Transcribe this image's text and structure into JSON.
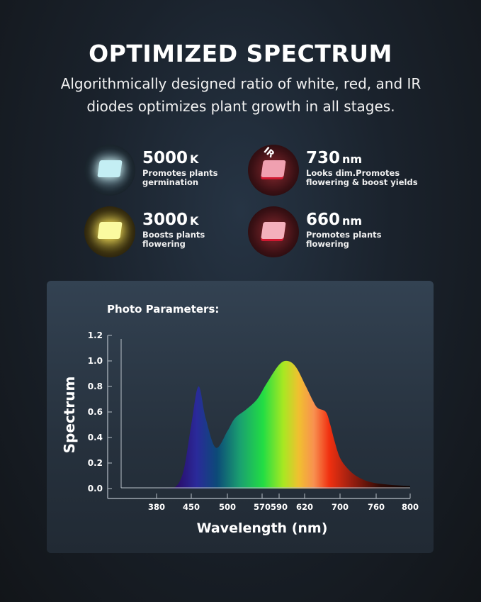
{
  "header": {
    "title": "OPTIMIZED SPECTRUM",
    "subtitle": "Algorithmically designed ratio of white, red, and IR diodes optimizes plant growth in all stages."
  },
  "features": [
    {
      "value": "5000",
      "unit": "K",
      "line1": "Promotes plants",
      "line2": "germination",
      "icon": "white-led-chip-icon",
      "color": "#bfe9f0"
    },
    {
      "value": "730",
      "unit": "nm",
      "line1": "Looks dim.Promotes",
      "line2": "flowering & boost yields",
      "icon": "ir-led-chip-icon",
      "color": "#e0304a",
      "badge": "IR"
    },
    {
      "value": "3000",
      "unit": "K",
      "line1": "Boosts plants",
      "line2": "flowering",
      "icon": "warm-white-led-chip-icon",
      "color": "#f6f08a"
    },
    {
      "value": "660",
      "unit": "nm",
      "line1": "Promotes plants",
      "line2": "flowering",
      "icon": "red-led-chip-icon",
      "color": "#e8404e"
    }
  ],
  "chart_data": {
    "type": "area",
    "title": "Photo Parameters:",
    "xlabel": "Wavelength (nm)",
    "ylabel": "Spectrum",
    "x_ticks": [
      380,
      450,
      500,
      570,
      590,
      620,
      700,
      760,
      800
    ],
    "y_ticks": [
      "0.0",
      "0.2",
      "0.4",
      "0.6",
      "0.8",
      "1.0",
      "1.2"
    ],
    "ylim": [
      0,
      1.2
    ],
    "grid": false,
    "x": [
      380,
      400,
      420,
      435,
      450,
      460,
      470,
      484,
      500,
      515,
      538,
      560,
      575,
      590,
      600,
      610,
      623,
      640,
      650,
      668,
      678,
      687,
      700,
      714,
      730,
      751,
      775,
      800
    ],
    "y": [
      0.0,
      0.0,
      0.02,
      0.15,
      0.5,
      0.8,
      0.55,
      0.32,
      0.45,
      0.55,
      0.62,
      0.7,
      0.82,
      0.97,
      1.0,
      0.95,
      0.8,
      0.68,
      0.63,
      0.6,
      0.5,
      0.38,
      0.24,
      0.15,
      0.09,
      0.05,
      0.03,
      0.02
    ]
  }
}
